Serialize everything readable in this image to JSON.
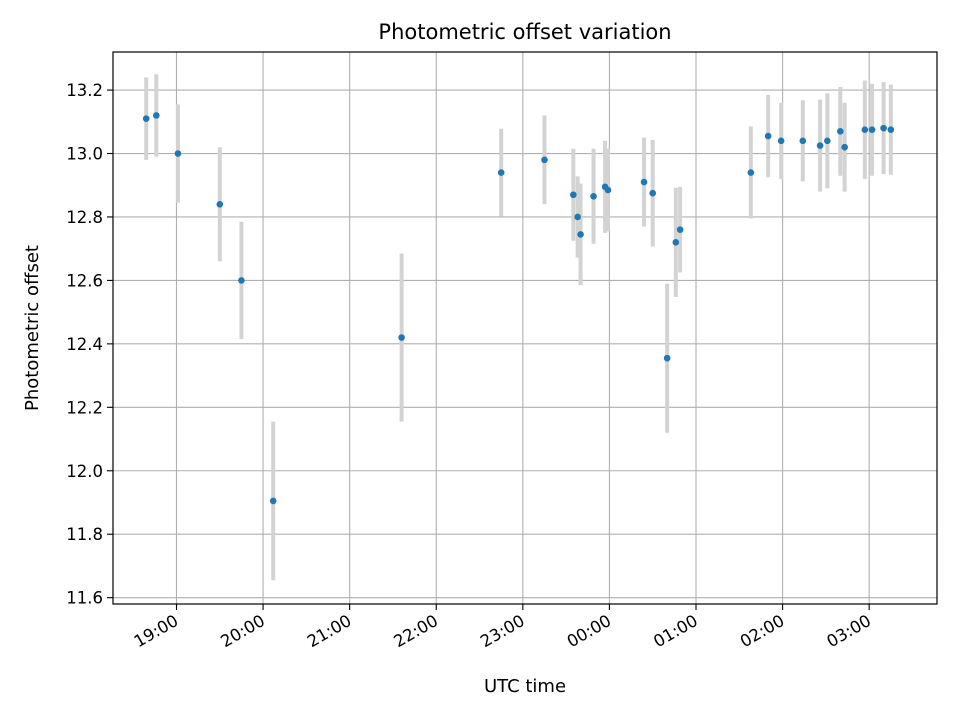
{
  "chart_data": {
    "type": "scatter",
    "title": "Photometric offset variation",
    "xlabel": "UTC time",
    "ylabel": "Photometric offset",
    "x_tick_labels": [
      "19:00",
      "20:00",
      "21:00",
      "22:00",
      "23:00",
      "00:00",
      "01:00",
      "02:00",
      "03:00"
    ],
    "x_tick_times": [
      "2000-01-01T19:00",
      "2000-01-01T20:00",
      "2000-01-01T21:00",
      "2000-01-01T22:00",
      "2000-01-01T23:00",
      "2000-01-02T00:00",
      "2000-01-02T01:00",
      "2000-01-02T02:00",
      "2000-01-02T03:00"
    ],
    "x_range": [
      "2000-01-01T18:16",
      "2000-01-02T03:47"
    ],
    "y_ticks": [
      "11.6",
      "11.8",
      "12.0",
      "12.2",
      "12.4",
      "12.6",
      "12.8",
      "13.0",
      "13.2"
    ],
    "ylim": [
      11.58,
      13.32
    ],
    "grid": true,
    "marker_color": "#1f77b4",
    "errorbar_color": "#d3d3d3",
    "points": [
      {
        "time": "2000-01-01T18:39",
        "value": 13.11,
        "err": 0.13
      },
      {
        "time": "2000-01-01T18:46",
        "value": 13.12,
        "err": 0.13
      },
      {
        "time": "2000-01-01T19:01",
        "value": 13.0,
        "err": 0.155
      },
      {
        "time": "2000-01-01T19:30",
        "value": 12.84,
        "err": 0.18
      },
      {
        "time": "2000-01-01T19:45",
        "value": 12.6,
        "err": 0.185
      },
      {
        "time": "2000-01-01T20:07",
        "value": 11.905,
        "err": 0.25
      },
      {
        "time": "2000-01-01T21:36",
        "value": 12.42,
        "err": 0.265
      },
      {
        "time": "2000-01-01T22:45",
        "value": 12.94,
        "err": 0.138
      },
      {
        "time": "2000-01-01T23:15",
        "value": 12.98,
        "err": 0.14
      },
      {
        "time": "2000-01-01T23:35",
        "value": 12.87,
        "err": 0.145
      },
      {
        "time": "2000-01-01T23:38",
        "value": 12.8,
        "err": 0.128
      },
      {
        "time": "2000-01-01T23:40",
        "value": 12.745,
        "err": 0.16
      },
      {
        "time": "2000-01-01T23:49",
        "value": 12.865,
        "err": 0.15
      },
      {
        "time": "2000-01-01T23:57",
        "value": 12.895,
        "err": 0.145
      },
      {
        "time": "2000-01-01T23:59",
        "value": 12.885,
        "err": 0.13
      },
      {
        "time": "2000-01-02T00:24",
        "value": 12.91,
        "err": 0.14
      },
      {
        "time": "2000-01-02T00:30",
        "value": 12.875,
        "err": 0.168
      },
      {
        "time": "2000-01-02T00:40",
        "value": 12.355,
        "err": 0.235
      },
      {
        "time": "2000-01-02T00:46",
        "value": 12.72,
        "err": 0.172
      },
      {
        "time": "2000-01-02T00:49",
        "value": 12.76,
        "err": 0.135
      },
      {
        "time": "2000-01-02T01:38",
        "value": 12.94,
        "err": 0.145
      },
      {
        "time": "2000-01-02T01:50",
        "value": 13.055,
        "err": 0.13
      },
      {
        "time": "2000-01-02T01:59",
        "value": 13.04,
        "err": 0.12
      },
      {
        "time": "2000-01-02T02:14",
        "value": 13.04,
        "err": 0.128
      },
      {
        "time": "2000-01-02T02:26",
        "value": 13.025,
        "err": 0.145
      },
      {
        "time": "2000-01-02T02:31",
        "value": 13.04,
        "err": 0.15
      },
      {
        "time": "2000-01-02T02:40",
        "value": 13.07,
        "err": 0.14
      },
      {
        "time": "2000-01-02T02:43",
        "value": 13.02,
        "err": 0.14
      },
      {
        "time": "2000-01-02T02:57",
        "value": 13.075,
        "err": 0.155
      },
      {
        "time": "2000-01-02T03:02",
        "value": 13.075,
        "err": 0.145
      },
      {
        "time": "2000-01-02T03:10",
        "value": 13.08,
        "err": 0.145
      },
      {
        "time": "2000-01-02T03:15",
        "value": 13.075,
        "err": 0.142
      }
    ]
  }
}
